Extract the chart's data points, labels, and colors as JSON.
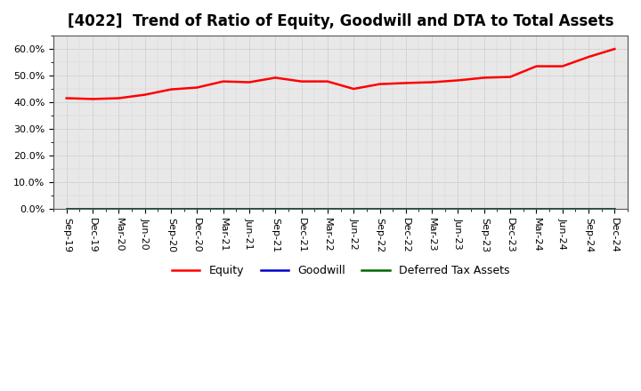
{
  "title": "[4022]  Trend of Ratio of Equity, Goodwill and DTA to Total Assets",
  "x_labels": [
    "Sep-19",
    "Dec-19",
    "Mar-20",
    "Jun-20",
    "Sep-20",
    "Dec-20",
    "Mar-21",
    "Jun-21",
    "Sep-21",
    "Dec-21",
    "Mar-22",
    "Jun-22",
    "Sep-22",
    "Dec-22",
    "Mar-23",
    "Jun-23",
    "Sep-23",
    "Dec-23",
    "Mar-24",
    "Jun-24",
    "Sep-24",
    "Dec-24"
  ],
  "equity": [
    41.5,
    41.2,
    41.5,
    42.8,
    44.8,
    45.5,
    47.8,
    47.5,
    49.2,
    47.8,
    47.8,
    45.0,
    46.8,
    47.2,
    47.5,
    48.2,
    49.2,
    49.5,
    53.5,
    53.5,
    57.0,
    60.0
  ],
  "goodwill": [
    0.0,
    0.0,
    0.0,
    0.0,
    0.0,
    0.0,
    0.0,
    0.0,
    0.0,
    0.0,
    0.0,
    0.0,
    0.0,
    0.0,
    0.0,
    0.0,
    0.0,
    0.0,
    0.0,
    0.0,
    0.0,
    0.0
  ],
  "dta": [
    0.0,
    0.0,
    0.0,
    0.0,
    0.0,
    0.0,
    0.0,
    0.0,
    0.0,
    0.0,
    0.0,
    0.0,
    0.0,
    0.0,
    0.0,
    0.0,
    0.0,
    0.0,
    0.0,
    0.0,
    0.0,
    0.0
  ],
  "equity_color": "#ff0000",
  "goodwill_color": "#0000cc",
  "dta_color": "#006600",
  "ylim": [
    0,
    65
  ],
  "yticks": [
    0,
    10,
    20,
    30,
    40,
    50,
    60
  ],
  "ytick_labels": [
    "0.0%",
    "10.0%",
    "20.0%",
    "30.0%",
    "40.0%",
    "50.0%",
    "60.0%"
  ],
  "plot_bg_color": "#e8e8e8",
  "fig_bg_color": "#ffffff",
  "grid_color": "#999999",
  "title_fontsize": 12,
  "tick_fontsize": 8,
  "legend_labels": [
    "Equity",
    "Goodwill",
    "Deferred Tax Assets"
  ],
  "linewidth": 1.8
}
